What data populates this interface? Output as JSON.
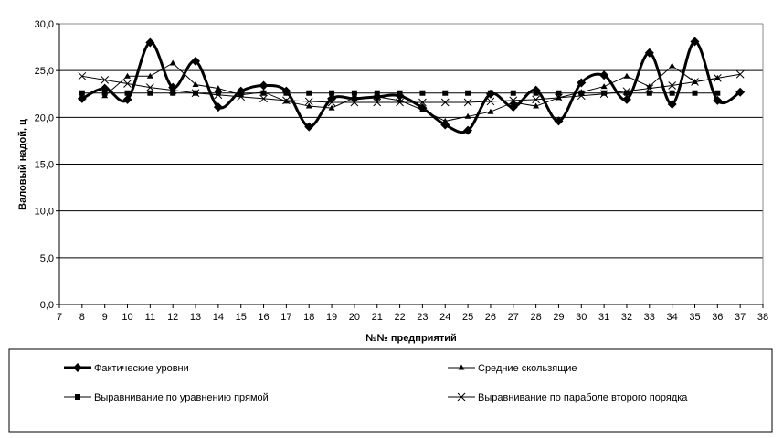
{
  "chart_data": {
    "type": "line",
    "title": "",
    "xlabel": "№№ предприятий",
    "ylabel": "Валовый надой, ц",
    "xlim": [
      7,
      38
    ],
    "ylim": [
      0,
      30
    ],
    "x_ticks": [
      "7",
      "8",
      "9",
      "10",
      "11",
      "12",
      "13",
      "14",
      "15",
      "16",
      "17",
      "18",
      "19",
      "20",
      "21",
      "22",
      "23",
      "24",
      "25",
      "26",
      "27",
      "28",
      "29",
      "30",
      "31",
      "32",
      "33",
      "34",
      "35",
      "36",
      "37",
      "38"
    ],
    "y_ticks": [
      "0,0",
      "5,0",
      "10,0",
      "15,0",
      "20,0",
      "25,0",
      "30,0"
    ],
    "grid": "horizontal",
    "legend_position": "bottom",
    "series": [
      {
        "name": "Фактические уровни",
        "marker": "diamond",
        "smooth": true,
        "bold": true,
        "x": [
          8,
          9,
          10,
          11,
          12,
          13,
          14,
          15,
          16,
          17,
          18,
          19,
          20,
          21,
          22,
          23,
          24,
          25,
          26,
          27,
          28,
          29,
          30,
          31,
          32,
          33,
          34,
          35,
          36,
          37
        ],
        "values": [
          22.0,
          23.1,
          21.9,
          28.0,
          23.2,
          26.0,
          21.1,
          22.8,
          23.4,
          22.8,
          19.0,
          22.0,
          22.0,
          22.2,
          22.3,
          21.0,
          19.2,
          18.6,
          22.5,
          21.1,
          22.9,
          19.6,
          23.7,
          24.5,
          21.9,
          26.9,
          21.4,
          28.1,
          21.8,
          22.7
        ]
      },
      {
        "name": "Средние скользящие",
        "marker": "triangle",
        "x": [
          9,
          10,
          11,
          12,
          13,
          14,
          15,
          16,
          17,
          18,
          19,
          20,
          21,
          22,
          23,
          24,
          25,
          26,
          27,
          28,
          29,
          30,
          31,
          32,
          33,
          34,
          35,
          36
        ],
        "values": [
          22.3,
          24.4,
          24.4,
          25.8,
          23.5,
          23.1,
          22.4,
          22.7,
          21.7,
          21.2,
          21.0,
          22.1,
          22.2,
          21.8,
          20.8,
          19.6,
          20.1,
          20.6,
          21.6,
          21.2,
          22.1,
          22.7,
          23.3,
          24.4,
          23.3,
          25.5,
          23.8,
          24.2
        ]
      },
      {
        "name": "Выравнивание по уравнению прямой",
        "marker": "square",
        "x": [
          8,
          9,
          10,
          11,
          12,
          13,
          14,
          15,
          16,
          17,
          18,
          19,
          20,
          21,
          22,
          23,
          24,
          25,
          26,
          27,
          28,
          29,
          30,
          31,
          32,
          33,
          34,
          35,
          36
        ],
        "values": [
          22.6,
          22.6,
          22.6,
          22.6,
          22.6,
          22.6,
          22.6,
          22.6,
          22.6,
          22.6,
          22.6,
          22.6,
          22.6,
          22.6,
          22.6,
          22.6,
          22.6,
          22.6,
          22.6,
          22.6,
          22.6,
          22.6,
          22.6,
          22.6,
          22.6,
          22.6,
          22.6,
          22.6,
          22.6
        ]
      },
      {
        "name": "Выравнивание по параболе второго порядка",
        "marker": "x",
        "x": [
          8,
          9,
          10,
          11,
          12,
          13,
          14,
          15,
          16,
          17,
          18,
          19,
          20,
          21,
          22,
          23,
          24,
          25,
          26,
          27,
          28,
          29,
          30,
          31,
          32,
          33,
          34,
          35,
          36,
          37
        ],
        "values": [
          24.4,
          24.0,
          23.6,
          23.2,
          22.9,
          22.6,
          22.4,
          22.2,
          22.0,
          21.8,
          21.7,
          21.6,
          21.6,
          21.6,
          21.6,
          21.6,
          21.6,
          21.6,
          21.7,
          21.8,
          21.9,
          22.1,
          22.3,
          22.5,
          22.8,
          23.1,
          23.4,
          23.8,
          24.2,
          24.6
        ]
      }
    ]
  }
}
